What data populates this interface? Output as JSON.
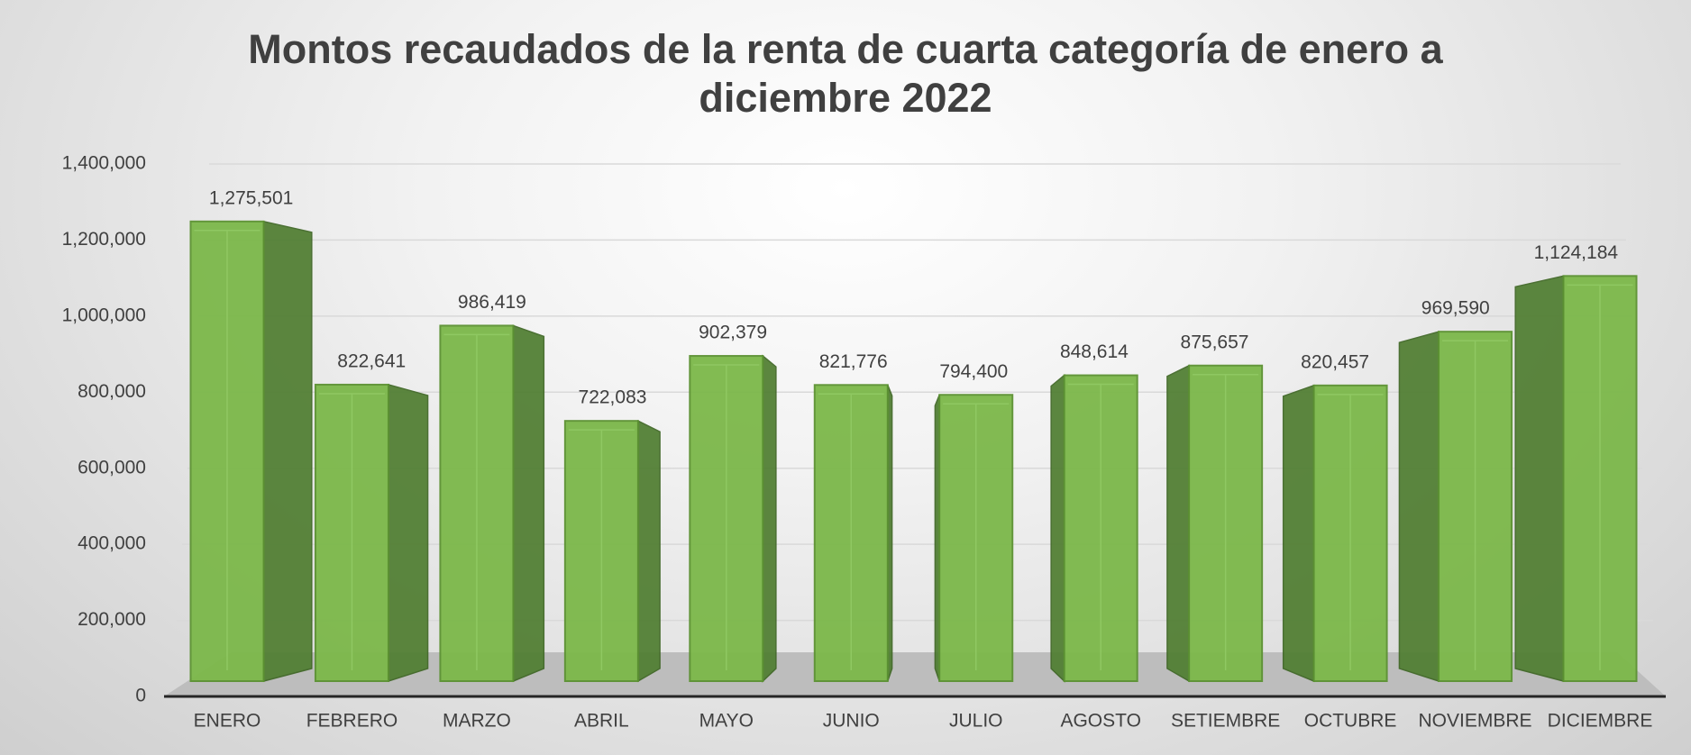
{
  "chart_data": {
    "type": "bar3d",
    "title": "Montos recaudados de la renta de cuarta categoría de enero a diciembre 2022",
    "categories": [
      "ENERO",
      "FEBRERO",
      "MARZO",
      "ABRIL",
      "MAYO",
      "JUNIO",
      "JULIO",
      "AGOSTO",
      "SETIEMBRE",
      "OCTUBRE",
      "NOVIEMBRE",
      "DICIEMBRE"
    ],
    "values": [
      1275501,
      822641,
      986419,
      722083,
      902379,
      821776,
      794400,
      848614,
      875657,
      820457,
      969590,
      1124184
    ],
    "value_labels": [
      "1,275,501",
      "822,641",
      "986,419",
      "722,083",
      "902,379",
      "821,776",
      "794,400",
      "848,614",
      "875,657",
      "820,457",
      "969,590",
      "1,124,184"
    ],
    "color": "#7cb84a",
    "ylim": [
      0,
      1400000
    ],
    "yticks": [
      0,
      {
        "value": 200000,
        "label": "200,000"
      },
      {
        "value": 400000,
        "label": "400,000"
      },
      {
        "value": 600000,
        "label": "600,000"
      },
      {
        "value": 800000,
        "label": "800,000"
      },
      {
        "value": 1000000,
        "label": "1,000,000"
      },
      {
        "value": 1200000,
        "label": "1,200,000"
      },
      {
        "value": 1400000,
        "label": "1,400,000"
      }
    ],
    "grid": true
  }
}
